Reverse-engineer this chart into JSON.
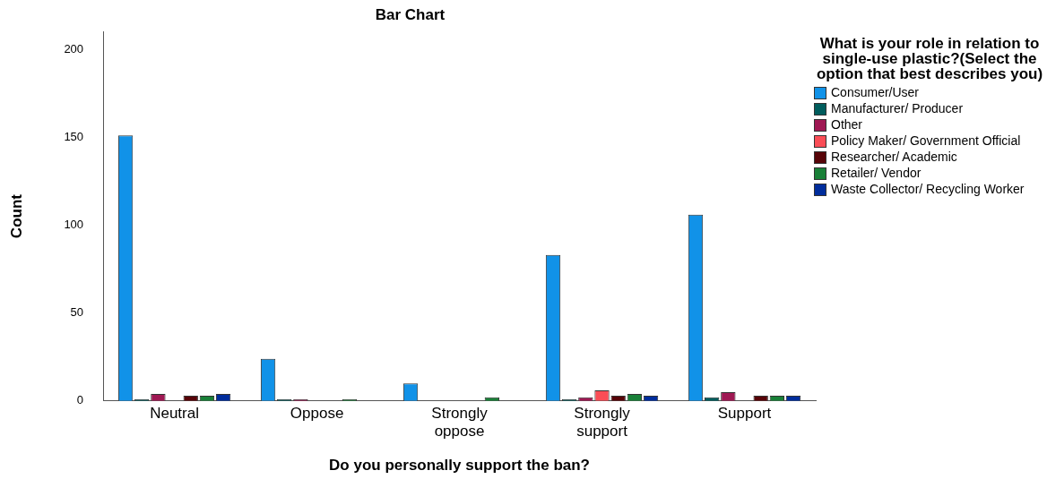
{
  "chart_data": {
    "type": "bar",
    "title": "Bar Chart",
    "xlabel": "Do you personally support the ban?",
    "ylabel": "Count",
    "legend_title": "What is your role in relation to single-use plastic?(Select the option that best describes you)",
    "legend": "right",
    "categories": [
      "Neutral",
      "Oppose",
      "Strongly oppose",
      "Strongly support",
      "Support"
    ],
    "series": [
      {
        "name": "Consumer/User",
        "color": "#1192e8",
        "values": [
          151,
          24,
          10,
          83,
          106
        ]
      },
      {
        "name": "Manufacturer/ Producer",
        "color": "#005d5d",
        "values": [
          1,
          1,
          null,
          1,
          2
        ]
      },
      {
        "name": "Other",
        "color": "#9f1853",
        "values": [
          4,
          1,
          null,
          2,
          5
        ]
      },
      {
        "name": "Policy Maker/ Government Official",
        "color": "#fa4d56",
        "values": [
          null,
          null,
          null,
          6,
          null
        ]
      },
      {
        "name": "Researcher/ Academic",
        "color": "#570408",
        "values": [
          3,
          null,
          null,
          3,
          3
        ]
      },
      {
        "name": "Retailer/ Vendor",
        "color": "#198038",
        "values": [
          3,
          1,
          2,
          4,
          3
        ]
      },
      {
        "name": "Waste Collector/ Recycling Worker",
        "color": "#002d9c",
        "values": [
          4,
          null,
          null,
          3,
          3
        ]
      }
    ],
    "ylim": [
      0,
      210
    ],
    "yticks": [
      0,
      50,
      100,
      150,
      200
    ],
    "grid": false
  }
}
